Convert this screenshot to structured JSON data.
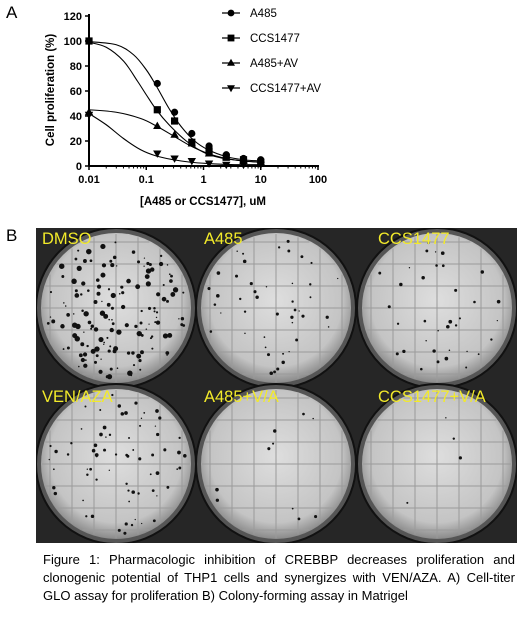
{
  "panel_a_label": "A",
  "panel_b_label": "B",
  "chart_data": {
    "type": "scatter",
    "xlabel": "[A485 or CCS1477], uM",
    "ylabel": "Cell proliferation (%)",
    "x_scale": "log",
    "xlim": [
      0.01,
      100
    ],
    "ylim": [
      0,
      120
    ],
    "x_ticks": [
      "0.01",
      "0.1",
      "1",
      "10",
      "100"
    ],
    "y_ticks": [
      "0",
      "20",
      "40",
      "60",
      "80",
      "100",
      "120"
    ],
    "legend_position": "top-right",
    "grid": false,
    "series": [
      {
        "name": "A485",
        "marker": "circle",
        "x": [
          0.01,
          0.156,
          0.3125,
          0.625,
          1.25,
          2.5,
          5,
          10
        ],
        "y": [
          100,
          66,
          43,
          26,
          16,
          9,
          6,
          5
        ],
        "fit": [
          [
            0.01,
            99.5
          ],
          [
            0.03,
            97
          ],
          [
            0.06,
            89
          ],
          [
            0.1,
            77
          ],
          [
            0.15,
            64
          ],
          [
            0.25,
            46
          ],
          [
            0.4,
            32
          ],
          [
            0.7,
            20
          ],
          [
            1.2,
            13
          ],
          [
            2.5,
            7.5
          ],
          [
            5,
            5
          ],
          [
            10,
            4
          ]
        ]
      },
      {
        "name": "CCS1477",
        "marker": "square",
        "x": [
          0.01,
          0.156,
          0.3125,
          0.625,
          1.25,
          2.5,
          5,
          10
        ],
        "y": [
          100,
          45,
          36,
          19,
          12,
          7,
          5,
          3
        ],
        "fit": [
          [
            0.01,
            99
          ],
          [
            0.02,
            95
          ],
          [
            0.04,
            84
          ],
          [
            0.07,
            68
          ],
          [
            0.1,
            57
          ],
          [
            0.15,
            45
          ],
          [
            0.25,
            33
          ],
          [
            0.5,
            20
          ],
          [
            1,
            11
          ],
          [
            2,
            6.5
          ],
          [
            5,
            4
          ],
          [
            10,
            3
          ]
        ]
      },
      {
        "name": "A485+AV",
        "marker": "triangle",
        "x": [
          0.01,
          0.156,
          0.3125,
          0.625,
          1.25,
          2.5,
          5,
          10
        ],
        "y": [
          43,
          32,
          25,
          18,
          10,
          7,
          4,
          3
        ],
        "fit": [
          [
            0.01,
            45
          ],
          [
            0.03,
            43
          ],
          [
            0.08,
            38
          ],
          [
            0.15,
            32
          ],
          [
            0.3,
            24
          ],
          [
            0.6,
            16
          ],
          [
            1.2,
            10
          ],
          [
            2.5,
            6
          ],
          [
            5,
            4
          ],
          [
            10,
            3
          ]
        ]
      },
      {
        "name": "CCS1477+AV",
        "marker": "triangle-down",
        "x": [
          0.01,
          0.156,
          0.3125,
          0.625,
          1.25,
          2.5,
          5,
          10
        ],
        "y": [
          41,
          10,
          6,
          4,
          2,
          1,
          1,
          1
        ],
        "fit": [
          [
            0.01,
            42
          ],
          [
            0.02,
            33
          ],
          [
            0.04,
            22
          ],
          [
            0.08,
            13
          ],
          [
            0.15,
            8
          ],
          [
            0.3,
            5
          ],
          [
            0.6,
            3
          ],
          [
            1.2,
            2
          ],
          [
            3,
            1.2
          ],
          [
            10,
            1
          ]
        ]
      }
    ]
  },
  "plates": [
    "DMSO",
    "A485",
    "CCS1477",
    "VEN/AZA",
    "A485+V/A",
    "CCS1477+V/A"
  ],
  "caption": "Figure 1: Pharmacologic inhibition of CREBBP decreases proliferation and clonogenic potential of THP1 cells and synergizes with VEN/AZA. A) Cell-titer GLO assay for proliferation B) Colony-forming assay in Matrigel"
}
